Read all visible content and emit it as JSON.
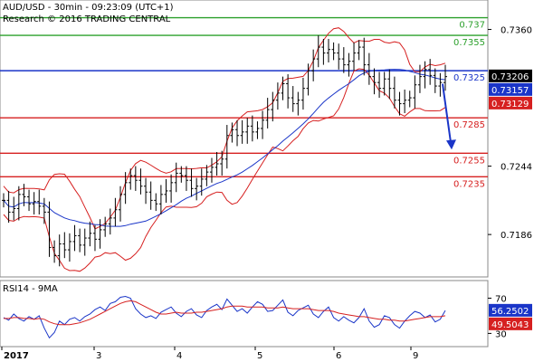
{
  "header": {
    "line1": "AUD/USD - 30min - 09:23:09 (UTC+1)",
    "line2": "Research © 2016 TRADING CENTRAL"
  },
  "chart_data": [
    {
      "type": "candlestick",
      "symbol": "AUD/USD",
      "timeframe": "30min",
      "y_axis_ticks": [
        {
          "label": "0.7360",
          "value": 0.736
        },
        {
          "label": "0.7244",
          "value": 0.7244
        },
        {
          "label": "0.7186",
          "value": 0.7186
        }
      ],
      "ylim": [
        0.715,
        0.7385
      ],
      "levels": [
        {
          "label": "0.737",
          "value": 0.737,
          "color": "#2ca02c"
        },
        {
          "label": "0.7355",
          "value": 0.7355,
          "color": "#2ca02c"
        },
        {
          "label": "0.7325",
          "value": 0.7325,
          "color": "#1a35c8"
        },
        {
          "label": "0.7285",
          "value": 0.7285,
          "color": "#d62020"
        },
        {
          "label": "0.7255",
          "value": 0.7255,
          "color": "#d62020"
        },
        {
          "label": "0.7235",
          "value": 0.7235,
          "color": "#d62020"
        }
      ],
      "value_boxes": [
        {
          "label": "0.73206",
          "value": 0.73206,
          "color": "#000000"
        },
        {
          "label": "0.73157",
          "value": 0.73157,
          "color": "#1a35c8"
        },
        {
          "label": "0.73129",
          "value": 0.73129,
          "color": "#d62020"
        }
      ],
      "x_labels": [
        {
          "label": "2017",
          "bold": true
        },
        {
          "label": "3"
        },
        {
          "label": "4"
        },
        {
          "label": "5"
        },
        {
          "label": "6"
        },
        {
          "label": "9"
        }
      ],
      "close_series": [
        0.7215,
        0.7205,
        0.7208,
        0.722,
        0.7218,
        0.7212,
        0.7214,
        0.721,
        0.7205,
        0.7175,
        0.7168,
        0.7178,
        0.7173,
        0.718,
        0.7185,
        0.7177,
        0.7183,
        0.7187,
        0.7182,
        0.719,
        0.7195,
        0.72,
        0.7207,
        0.722,
        0.723,
        0.7236,
        0.7232,
        0.7227,
        0.7222,
        0.7215,
        0.7212,
        0.722,
        0.7223,
        0.723,
        0.7238,
        0.7236,
        0.7232,
        0.7225,
        0.7227,
        0.7233,
        0.7239,
        0.7243,
        0.7246,
        0.725,
        0.727,
        0.7275,
        0.727,
        0.7273,
        0.7278,
        0.7273,
        0.7276,
        0.7283,
        0.7292,
        0.73,
        0.7306,
        0.7314,
        0.7302,
        0.7297,
        0.73,
        0.731,
        0.7325,
        0.7335,
        0.7345,
        0.734,
        0.7343,
        0.734,
        0.7335,
        0.733,
        0.7333,
        0.734,
        0.7345,
        0.733,
        0.732,
        0.7315,
        0.731,
        0.7318,
        0.731,
        0.73,
        0.7297,
        0.73,
        0.7302,
        0.7313,
        0.732,
        0.7326,
        0.7321,
        0.7312,
        0.7315,
        0.732
      ],
      "forecast_arrow": {
        "direction": "down",
        "target": 0.7255
      }
    },
    {
      "type": "line",
      "title": "RSI14 - 9MA",
      "y_axis_ticks": [
        {
          "label": "70",
          "value": 70
        },
        {
          "label": "30",
          "value": 30
        }
      ],
      "ylim": [
        15,
        90
      ],
      "value_boxes": [
        {
          "label": "56.2502",
          "value": 56.2502,
          "color": "#1a35c8"
        },
        {
          "label": "49.5043",
          "value": 49.5043,
          "color": "#d62020"
        }
      ],
      "series": [
        {
          "color": "#1a35c8",
          "values": [
            48,
            45,
            52,
            47,
            44,
            49,
            46,
            50,
            36,
            25,
            31,
            44,
            40,
            46,
            48,
            44,
            49,
            52,
            57,
            60,
            56,
            64,
            66,
            71,
            72,
            70,
            58,
            52,
            48,
            50,
            47,
            54,
            57,
            60,
            53,
            49,
            55,
            58,
            51,
            48,
            56,
            60,
            63,
            57,
            69,
            62,
            55,
            58,
            53,
            60,
            66,
            63,
            55,
            56,
            62,
            68,
            54,
            50,
            56,
            59,
            62,
            52,
            48,
            55,
            60,
            48,
            44,
            49,
            45,
            42,
            48,
            58,
            44,
            37,
            40,
            50,
            48,
            40,
            36,
            44,
            50,
            55,
            53,
            48,
            51,
            43,
            46,
            56
          ]
        },
        {
          "color": "#d62020",
          "values": [
            47,
            47,
            48,
            48,
            47,
            47,
            46,
            47,
            46,
            43,
            41,
            40,
            40,
            40,
            41,
            42,
            44,
            46,
            49,
            52,
            55,
            58,
            61,
            64,
            66,
            67,
            66,
            63,
            60,
            57,
            54,
            52,
            52,
            53,
            54,
            53,
            53,
            53,
            54,
            54,
            55,
            56,
            57,
            58,
            60,
            61,
            61,
            61,
            60,
            60,
            60,
            60,
            59,
            59,
            59,
            60,
            59,
            58,
            58,
            58,
            58,
            57,
            56,
            56,
            56,
            55,
            53,
            52,
            51,
            50,
            49,
            49,
            48,
            47,
            46,
            46,
            45,
            45,
            44,
            44,
            45,
            46,
            47,
            48,
            49,
            49,
            49,
            50
          ]
        }
      ]
    }
  ]
}
